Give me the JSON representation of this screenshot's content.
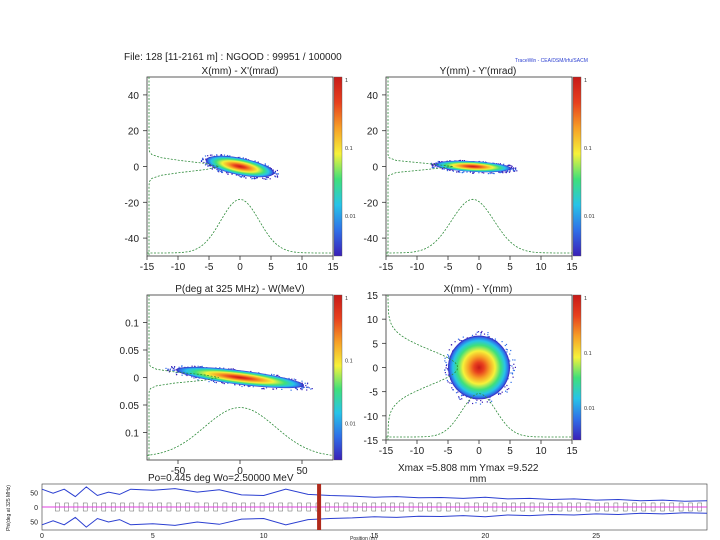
{
  "header": {
    "file_info": "File: 128 [11-2161 m] : NGOOD : 99951 / 100000",
    "brand": "TraceWin - CEA/DSM/Irfu/SACM"
  },
  "footer": {
    "energy_text": "Po=0.445 deg  Wo=2.50000 MeV",
    "xy_max_text": "Xmax =5.808 mm  Ymax =9.522",
    "xy_unit": "mm"
  },
  "colors": {
    "scale": [
      "#3a1fb8",
      "#2f6fe8",
      "#27c4e8",
      "#3fe07a",
      "#f6f23a",
      "#f7a026",
      "#e8401e",
      "#c81a18"
    ],
    "profile_line": "#2e8b3a",
    "envelope_line": "#2b3fd1",
    "element_markers": "#555555",
    "beamline": "#e040e0",
    "position_marker": "#b02a1c"
  },
  "chart_data": [
    {
      "type": "scatter",
      "title": "X(mm) - X'(mrad)",
      "xlim": [
        -15,
        15
      ],
      "ylim": [
        -50,
        50
      ],
      "x_ticks": [
        "-15",
        "-10",
        "-5",
        "0",
        "5",
        "10",
        "15"
      ],
      "y_ticks": [
        "40",
        "20",
        "0",
        "-20",
        "-40"
      ],
      "y_tick_values": [
        40,
        20,
        0,
        -20,
        -40
      ],
      "colorbar_ticks": [
        "1",
        "0.1",
        "0.01"
      ],
      "ellipse": {
        "center": [
          0,
          0
        ],
        "semi_axes": [
          5.6,
          4.8
        ],
        "tilt_deg": -11
      },
      "profiles": [
        "horizontal",
        "vertical"
      ]
    },
    {
      "type": "scatter",
      "title": "Y(mm) - Y'(mrad)",
      "xlim": [
        -15,
        15
      ],
      "ylim": [
        -50,
        50
      ],
      "x_ticks": [
        "-15",
        "-10",
        "-5",
        "0",
        "5",
        "10",
        "15"
      ],
      "y_ticks": [
        "40",
        "20",
        "0",
        "-20",
        "-40"
      ],
      "y_tick_values": [
        40,
        20,
        0,
        -20,
        -40
      ],
      "colorbar_ticks": [
        "1",
        "0.1",
        "0.01"
      ],
      "ellipse": {
        "center": [
          -1,
          0
        ],
        "semi_axes": [
          6.2,
          3.0
        ],
        "tilt_deg": -3
      },
      "profiles": [
        "horizontal",
        "vertical"
      ]
    },
    {
      "type": "scatter",
      "title": "P(deg at 325 MHz) - W(MeV)",
      "xlim": [
        -75,
        75
      ],
      "ylim": [
        -0.15,
        0.15
      ],
      "x_ticks": [
        "-50",
        "0",
        "50"
      ],
      "x_tick_values": [
        -50,
        0,
        50
      ],
      "y_ticks": [
        "0.1",
        "0.05",
        "0",
        "0.05",
        "0.1"
      ],
      "y_tick_values": [
        0.1,
        0.05,
        0,
        -0.05,
        -0.1
      ],
      "colorbar_ticks": [
        "1",
        "0.1",
        "0.01"
      ],
      "ellipse": {
        "center": [
          0,
          0
        ],
        "semi_axes": [
          52,
          0.013
        ],
        "tilt_deg": -7
      },
      "profiles": [
        "horizontal",
        "vertical"
      ]
    },
    {
      "type": "scatter",
      "title": "X(mm) - Y(mm)",
      "xlim": [
        -15,
        15
      ],
      "ylim": [
        -15,
        15
      ],
      "x_ticks": [
        "-15",
        "-10",
        "-5",
        "0",
        "5",
        "10",
        "15"
      ],
      "y_ticks": [
        "15",
        "10",
        "5",
        "0",
        "-5",
        "-10",
        "-15"
      ],
      "y_tick_values": [
        15,
        10,
        5,
        0,
        -5,
        -10,
        -15
      ],
      "colorbar_ticks": [
        "1",
        "0.1",
        "0.01"
      ],
      "ellipse": {
        "center": [
          0,
          0
        ],
        "semi_axes": [
          5.0,
          6.6
        ],
        "tilt_deg": 0
      },
      "profiles": [
        "horizontal",
        "vertical"
      ]
    },
    {
      "type": "line",
      "title": "",
      "xlabel": "Position (m)",
      "ylabel": "Phi(deg at 325 MHz)",
      "xlim": [
        0,
        30
      ],
      "ylim": [
        -80,
        80
      ],
      "x_ticks": [
        "0",
        "5",
        "10",
        "15",
        "20",
        "25"
      ],
      "y_ticks": [
        "50",
        "0",
        "50"
      ],
      "y_tick_values": [
        50,
        0,
        -50
      ],
      "marker_position": 12.5,
      "series": [
        {
          "values": [
            [
              0,
              62
            ],
            [
              0.5,
              48
            ],
            [
              1,
              62
            ],
            [
              1.5,
              36
            ],
            [
              2,
              70
            ],
            [
              2.5,
              40
            ],
            [
              3,
              52
            ],
            [
              3.5,
              44
            ],
            [
              4,
              62
            ],
            [
              5,
              58
            ],
            [
              6,
              64
            ],
            [
              7,
              52
            ],
            [
              8,
              60
            ],
            [
              9,
              42
            ],
            [
              10,
              40
            ],
            [
              11,
              62
            ],
            [
              12,
              44
            ],
            [
              13,
              40
            ],
            [
              14,
              38
            ],
            [
              15,
              34
            ],
            [
              16,
              36
            ],
            [
              17,
              32
            ],
            [
              18,
              33
            ],
            [
              19,
              30
            ],
            [
              20,
              34
            ],
            [
              21,
              28
            ],
            [
              22,
              30
            ],
            [
              23,
              26
            ],
            [
              24,
              28
            ],
            [
              25,
              24
            ],
            [
              26,
              26
            ],
            [
              27,
              22
            ],
            [
              28,
              24
            ],
            [
              29,
              20
            ],
            [
              30,
              22
            ]
          ]
        },
        {
          "values": [
            [
              0,
              -62
            ],
            [
              0.5,
              -48
            ],
            [
              1,
              -62
            ],
            [
              1.5,
              -36
            ],
            [
              2,
              -70
            ],
            [
              2.5,
              -40
            ],
            [
              3,
              -52
            ],
            [
              3.5,
              -44
            ],
            [
              4,
              -62
            ],
            [
              5,
              -58
            ],
            [
              6,
              -64
            ],
            [
              7,
              -52
            ],
            [
              8,
              -60
            ],
            [
              9,
              -42
            ],
            [
              10,
              -40
            ],
            [
              11,
              -62
            ],
            [
              12,
              -44
            ],
            [
              13,
              -40
            ],
            [
              14,
              -38
            ],
            [
              15,
              -34
            ],
            [
              16,
              -36
            ],
            [
              17,
              -32
            ],
            [
              18,
              -33
            ],
            [
              19,
              -30
            ],
            [
              20,
              -34
            ],
            [
              21,
              -28
            ],
            [
              22,
              -30
            ],
            [
              23,
              -26
            ],
            [
              24,
              -28
            ],
            [
              25,
              -24
            ],
            [
              26,
              -26
            ],
            [
              27,
              -22
            ],
            [
              28,
              -24
            ],
            [
              29,
              -20
            ],
            [
              30,
              -22
            ]
          ]
        }
      ]
    }
  ]
}
